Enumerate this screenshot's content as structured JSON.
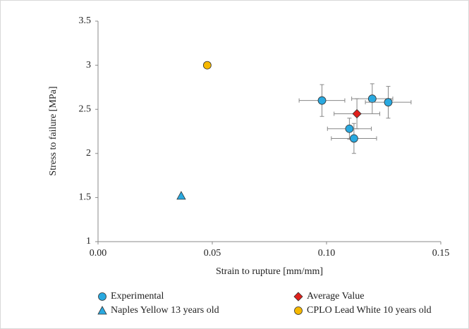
{
  "chart_data": {
    "type": "scatter",
    "xlabel": "Strain to rupture [mm/mm]",
    "ylabel": "Stress to failure [MPa]",
    "xlim": [
      0,
      0.15
    ],
    "xticks": [
      {
        "value": 0,
        "label": "0.00"
      },
      {
        "value": 0.05,
        "label": "0.05"
      },
      {
        "value": 0.1,
        "label": "0.10"
      },
      {
        "value": 0.15,
        "label": "0.15"
      }
    ],
    "ylim": [
      1,
      3.5
    ],
    "yticks": [
      1,
      1.5,
      2,
      2.5,
      3,
      3.5
    ],
    "grid": false,
    "legend": "bottom",
    "series": [
      {
        "name": "Experimental",
        "color": "#29a9e0",
        "marker": "circle",
        "x": [
          0.098,
          0.12,
          0.127,
          0.11,
          0.112
        ],
        "values": [
          2.6,
          2.62,
          2.58,
          2.28,
          2.17
        ],
        "xerr": [
          0.01,
          0.009,
          0.01,
          0.0096,
          0.0099
        ],
        "yerr": [
          0.18,
          0.17,
          0.18,
          0.12,
          0.17
        ]
      },
      {
        "name": "Average Value",
        "color": "#e0201b",
        "marker": "diamond",
        "x": [
          0.1133
        ],
        "values": [
          2.45
        ],
        "xerr": [
          0.01
        ],
        "yerr": [
          0.17
        ]
      },
      {
        "name": "Naples Yellow 13 years old",
        "color": "#29a9e0",
        "marker": "triangle",
        "x": [
          0.0364
        ],
        "values": [
          1.52
        ]
      },
      {
        "name": "CPLO Lead White 10 years old",
        "color": "#f6b800",
        "marker": "circle",
        "x": [
          0.0478
        ],
        "values": [
          3.0
        ]
      }
    ]
  }
}
